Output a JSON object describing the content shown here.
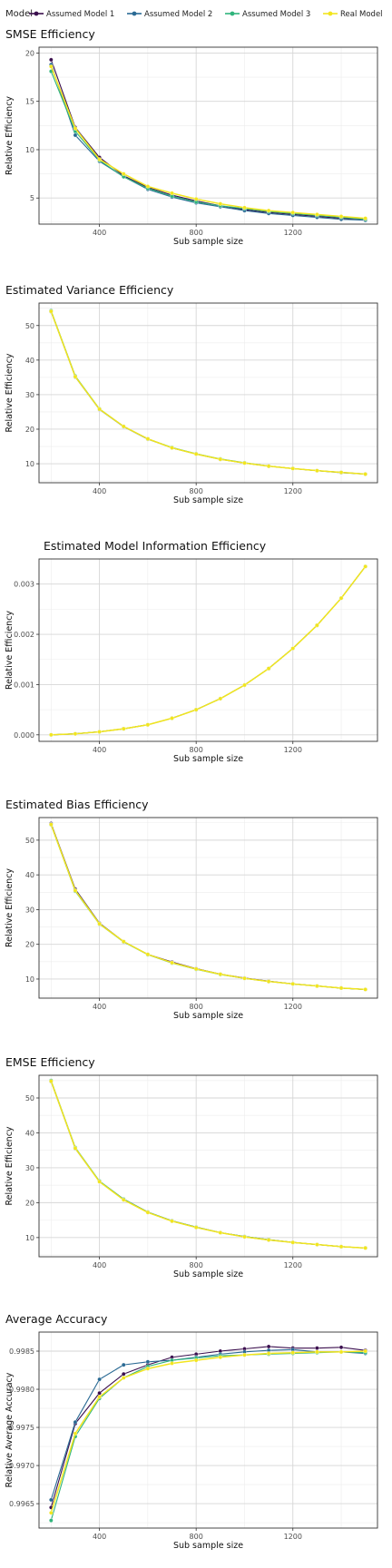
{
  "legend": {
    "title": "Model",
    "entries": [
      {
        "name": "Assumed Model 1",
        "color": "#3b0f4e"
      },
      {
        "name": "Assumed Model 2",
        "color": "#2a6a94"
      },
      {
        "name": "Assumed Model 3",
        "color": "#2fb47c"
      },
      {
        "name": "Real Model",
        "color": "#f2e51e"
      }
    ]
  },
  "chart_data": [
    {
      "type": "line",
      "title": "SMSE Efficiency",
      "xlabel": "Sub sample size",
      "ylabel": "Relative Efficiency",
      "xlim": [
        150,
        1550
      ],
      "ylim": [
        2.3,
        20.6
      ],
      "xticks": [
        400,
        800,
        1200
      ],
      "yticks": [
        5,
        10,
        15,
        20
      ],
      "x": [
        200,
        300,
        400,
        500,
        600,
        700,
        800,
        900,
        1000,
        1100,
        1200,
        1300,
        1400,
        1500
      ],
      "series": [
        {
          "name": "Assumed Model 1",
          "values": [
            19.3,
            12.3,
            9.2,
            7.3,
            6.1,
            5.3,
            4.7,
            4.2,
            3.8,
            3.5,
            3.3,
            3.1,
            2.9,
            2.8
          ]
        },
        {
          "name": "Assumed Model 2",
          "values": [
            18.8,
            11.5,
            8.8,
            7.2,
            5.9,
            5.1,
            4.5,
            4.1,
            3.7,
            3.4,
            3.2,
            3.0,
            2.8,
            2.7
          ]
        },
        {
          "name": "Assumed Model 3",
          "values": [
            18.1,
            11.9,
            8.9,
            7.2,
            6.0,
            5.2,
            4.6,
            4.2,
            3.9,
            3.6,
            3.4,
            3.2,
            3.0,
            2.8
          ]
        },
        {
          "name": "Real Model",
          "values": [
            18.6,
            12.2,
            9.0,
            7.5,
            6.2,
            5.5,
            4.9,
            4.4,
            4.0,
            3.7,
            3.5,
            3.3,
            3.1,
            2.9
          ]
        }
      ]
    },
    {
      "type": "line",
      "title": "Estimated Variance Efficiency",
      "xlabel": "Sub sample size",
      "ylabel": "Relative Efficiency",
      "xlim": [
        150,
        1550
      ],
      "ylim": [
        4.5,
        56.5
      ],
      "xticks": [
        400,
        800,
        1200
      ],
      "yticks": [
        10,
        20,
        30,
        40,
        50
      ],
      "x": [
        200,
        300,
        400,
        500,
        600,
        700,
        800,
        900,
        1000,
        1100,
        1200,
        1300,
        1400,
        1500
      ],
      "series": [
        {
          "name": "Assumed Model 1",
          "values": [
            54.2,
            35.3,
            25.8,
            20.8,
            17.2,
            14.6,
            12.8,
            11.3,
            10.2,
            9.3,
            8.6,
            8.0,
            7.5,
            7.0
          ]
        },
        {
          "name": "Assumed Model 2",
          "values": [
            54.0,
            35.1,
            25.7,
            20.7,
            17.1,
            14.6,
            12.8,
            11.3,
            10.2,
            9.3,
            8.6,
            8.0,
            7.4,
            7.0
          ]
        },
        {
          "name": "Assumed Model 3",
          "values": [
            54.3,
            35.4,
            25.9,
            20.8,
            17.2,
            14.7,
            12.9,
            11.4,
            10.3,
            9.3,
            8.6,
            8.0,
            7.5,
            7.0
          ]
        },
        {
          "name": "Real Model",
          "values": [
            54.1,
            35.2,
            25.8,
            20.8,
            17.2,
            14.6,
            12.8,
            11.3,
            10.2,
            9.3,
            8.6,
            8.0,
            7.5,
            7.0
          ]
        }
      ]
    },
    {
      "type": "line",
      "title": "Estimated Model Information Efficiency",
      "xlabel": "Sub sample size",
      "ylabel": "Relative Efficiency",
      "xlim": [
        150,
        1550
      ],
      "ylim": [
        -0.00013,
        0.0035
      ],
      "xticks": [
        400,
        800,
        1200
      ],
      "yticks": [
        0,
        0.001,
        0.002,
        0.003
      ],
      "ytick_labels": [
        "0.000",
        "0.001",
        "0.002",
        "0.003"
      ],
      "x": [
        200,
        300,
        400,
        500,
        600,
        700,
        800,
        900,
        1000,
        1100,
        1200,
        1300,
        1400,
        1500
      ],
      "series": [
        {
          "name": "Assumed Model 1",
          "values": [
            0.0,
            2e-05,
            6e-05,
            0.00012,
            0.0002,
            0.00033,
            0.0005,
            0.00072,
            0.00099,
            0.00132,
            0.00172,
            0.00218,
            0.00272,
            0.00335
          ]
        },
        {
          "name": "Assumed Model 2",
          "values": [
            0.0,
            2e-05,
            6e-05,
            0.00012,
            0.0002,
            0.00033,
            0.0005,
            0.00072,
            0.00099,
            0.00132,
            0.00172,
            0.00218,
            0.00272,
            0.00335
          ]
        },
        {
          "name": "Assumed Model 3",
          "values": [
            0.0,
            2e-05,
            6e-05,
            0.00012,
            0.0002,
            0.00033,
            0.0005,
            0.00072,
            0.00099,
            0.00132,
            0.00172,
            0.00218,
            0.00272,
            0.00335
          ]
        },
        {
          "name": "Real Model",
          "values": [
            0.0,
            2e-05,
            6e-05,
            0.00012,
            0.0002,
            0.00033,
            0.0005,
            0.00072,
            0.00099,
            0.00132,
            0.00172,
            0.00218,
            0.00272,
            0.00335
          ]
        }
      ]
    },
    {
      "type": "line",
      "title": "Estimated Bias Efficiency",
      "xlabel": "Sub sample size",
      "ylabel": "Relative Efficiency",
      "xlim": [
        150,
        1550
      ],
      "ylim": [
        4.5,
        56.5
      ],
      "xticks": [
        400,
        800,
        1200
      ],
      "yticks": [
        10,
        20,
        30,
        40,
        50
      ],
      "x": [
        200,
        300,
        400,
        500,
        600,
        700,
        800,
        900,
        1000,
        1100,
        1200,
        1300,
        1400,
        1500
      ],
      "series": [
        {
          "name": "Assumed Model 1",
          "values": [
            54.8,
            35.9,
            26.1,
            20.8,
            17.1,
            14.9,
            13.0,
            11.4,
            10.3,
            9.4,
            8.6,
            8.0,
            7.4,
            7.0
          ]
        },
        {
          "name": "Assumed Model 2",
          "values": [
            54.6,
            35.6,
            26.0,
            20.7,
            17.1,
            14.7,
            12.9,
            11.4,
            10.2,
            9.3,
            8.6,
            8.0,
            7.4,
            7.0
          ]
        },
        {
          "name": "Assumed Model 3",
          "values": [
            54.4,
            35.3,
            25.8,
            20.7,
            17.0,
            14.6,
            12.8,
            11.3,
            10.2,
            9.3,
            8.6,
            8.0,
            7.4,
            7.0
          ]
        },
        {
          "name": "Real Model",
          "values": [
            54.5,
            35.5,
            25.9,
            20.8,
            17.1,
            14.7,
            12.9,
            11.4,
            10.2,
            9.3,
            8.6,
            8.0,
            7.4,
            7.0
          ]
        }
      ]
    },
    {
      "type": "line",
      "title": "EMSE Efficiency",
      "xlabel": "Sub sample size",
      "ylabel": "Relative Efficiency",
      "xlim": [
        150,
        1550
      ],
      "ylim": [
        4.5,
        56.5
      ],
      "xticks": [
        400,
        800,
        1200
      ],
      "yticks": [
        10,
        20,
        30,
        40,
        50
      ],
      "x": [
        200,
        300,
        400,
        500,
        600,
        700,
        800,
        900,
        1000,
        1100,
        1200,
        1300,
        1400,
        1500
      ],
      "series": [
        {
          "name": "Assumed Model 1",
          "values": [
            54.9,
            35.7,
            26.1,
            21.0,
            17.3,
            14.8,
            13.0,
            11.4,
            10.3,
            9.4,
            8.6,
            8.0,
            7.4,
            7.0
          ]
        },
        {
          "name": "Assumed Model 2",
          "values": [
            54.7,
            35.5,
            26.0,
            20.9,
            17.2,
            14.7,
            12.9,
            11.4,
            10.2,
            9.3,
            8.6,
            8.0,
            7.4,
            7.0
          ]
        },
        {
          "name": "Assumed Model 3",
          "values": [
            55.0,
            35.8,
            26.2,
            21.0,
            17.3,
            14.8,
            13.0,
            11.4,
            10.3,
            9.4,
            8.6,
            8.0,
            7.4,
            7.0
          ]
        },
        {
          "name": "Real Model",
          "values": [
            54.8,
            35.6,
            26.0,
            20.8,
            17.2,
            14.7,
            12.9,
            11.4,
            10.2,
            9.3,
            8.6,
            8.0,
            7.4,
            7.0
          ]
        }
      ]
    },
    {
      "type": "line",
      "title": "Average Accuracy",
      "xlabel": "Sub sample size",
      "ylabel": "Relative Average Accuracy",
      "xlim": [
        150,
        1550
      ],
      "ylim": [
        0.99618,
        0.99875
      ],
      "xticks": [
        400,
        800,
        1200
      ],
      "yticks": [
        0.9965,
        0.997,
        0.9975,
        0.998,
        0.9985
      ],
      "ytick_labels": [
        "0.9965",
        "0.9970",
        "0.9975",
        "0.9980",
        "0.9985"
      ],
      "x": [
        200,
        300,
        400,
        500,
        600,
        700,
        800,
        900,
        1000,
        1100,
        1200,
        1300,
        1400,
        1500
      ],
      "series": [
        {
          "name": "Assumed Model 1",
          "values": [
            0.99645,
            0.99755,
            0.99795,
            0.9982,
            0.99832,
            0.99842,
            0.99846,
            0.9985,
            0.99853,
            0.99856,
            0.99854,
            0.99854,
            0.99855,
            0.99851
          ]
        },
        {
          "name": "Assumed Model 2",
          "values": [
            0.99655,
            0.99757,
            0.99813,
            0.99832,
            0.99836,
            0.99838,
            0.99842,
            0.99846,
            0.99849,
            0.99851,
            0.99852,
            0.99849,
            0.99849,
            0.99847
          ]
        },
        {
          "name": "Assumed Model 3",
          "values": [
            0.99628,
            0.99738,
            0.99788,
            0.99815,
            0.9983,
            0.99838,
            0.99841,
            0.99844,
            0.99845,
            0.99846,
            0.99847,
            0.99848,
            0.99849,
            0.99848
          ]
        },
        {
          "name": "Real Model",
          "values": [
            0.99638,
            0.99742,
            0.9979,
            0.99815,
            0.99827,
            0.99834,
            0.99838,
            0.99842,
            0.99845,
            0.99847,
            0.99848,
            0.99849,
            0.99849,
            0.9985
          ]
        }
      ]
    }
  ]
}
